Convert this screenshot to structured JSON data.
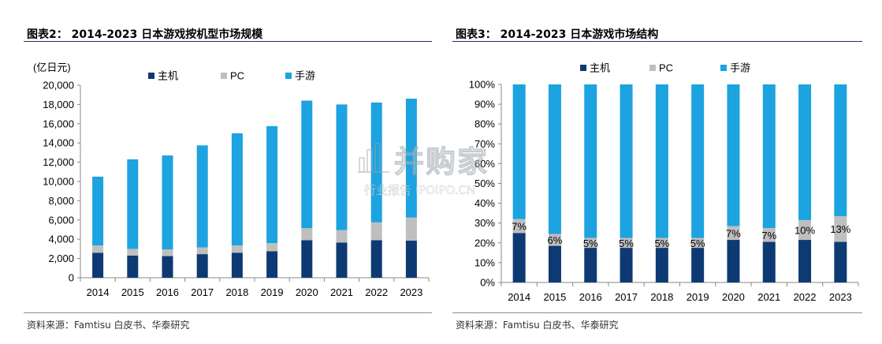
{
  "left_panel": {
    "title": "图表2： 2014-2023 日本游戏按机型市场规模",
    "source": "资料来源：Famtisu 白皮书、华泰研究"
  },
  "right_panel": {
    "title": "图表3： 2014-2023 日本游戏市场结构",
    "source": "资料来源：Famtisu 白皮书、华泰研究"
  },
  "watermark": {
    "main": "并购家",
    "sub": "行业报告 IPOIPO.CN"
  },
  "colors": {
    "console": "#0e3a73",
    "pc": "#bfbfbf",
    "mobile": "#1ca3e0",
    "rule": "#1f3864"
  },
  "chart_data": [
    {
      "type": "bar",
      "stacked": true,
      "unit_label": "(亿日元)",
      "categories": [
        "2014",
        "2015",
        "2016",
        "2017",
        "2018",
        "2019",
        "2020",
        "2021",
        "2022",
        "2023"
      ],
      "ylim": [
        0,
        20000
      ],
      "yticks": [
        0,
        2000,
        4000,
        6000,
        8000,
        10000,
        12000,
        14000,
        16000,
        18000,
        20000
      ],
      "ytick_labels": [
        "0",
        "2,000",
        "4,000",
        "6,000",
        "8,000",
        "10,000",
        "12,000",
        "14,000",
        "16,000",
        "18,000",
        "20,000"
      ],
      "legend_position": "top",
      "series": [
        {
          "name": "主机",
          "color": "#0e3a73",
          "values": [
            2600,
            2300,
            2250,
            2450,
            2600,
            2750,
            3900,
            3650,
            3900,
            3850
          ]
        },
        {
          "name": "PC",
          "color": "#bfbfbf",
          "values": [
            750,
            700,
            700,
            700,
            750,
            850,
            1250,
            1300,
            1850,
            2400
          ]
        },
        {
          "name": "手游",
          "color": "#1ca3e0",
          "values": [
            7150,
            9300,
            9750,
            10600,
            11650,
            12150,
            13250,
            13050,
            12450,
            12350
          ]
        }
      ]
    },
    {
      "type": "bar",
      "stacked": true,
      "percent": true,
      "categories": [
        "2014",
        "2015",
        "2016",
        "2017",
        "2018",
        "2019",
        "2020",
        "2021",
        "2022",
        "2023"
      ],
      "ylim": [
        0,
        100
      ],
      "yticks": [
        0,
        10,
        20,
        30,
        40,
        50,
        60,
        70,
        80,
        90,
        100
      ],
      "ytick_labels": [
        "0%",
        "10%",
        "20%",
        "30%",
        "40%",
        "50%",
        "60%",
        "70%",
        "80%",
        "90%",
        "100%"
      ],
      "legend_position": "top",
      "series": [
        {
          "name": "主机",
          "color": "#0e3a73",
          "values": [
            25,
            18.5,
            17.5,
            17.5,
            17.5,
            17.5,
            21.5,
            20.5,
            21.5,
            20.5
          ]
        },
        {
          "name": "PC",
          "color": "#bfbfbf",
          "values": [
            7,
            6,
            5,
            5,
            5,
            5,
            7,
            7,
            10,
            13
          ]
        },
        {
          "name": "手游",
          "color": "#1ca3e0",
          "values": [
            68,
            75.5,
            77.5,
            77.5,
            77.5,
            77.5,
            71.5,
            72.5,
            68.5,
            66.5
          ]
        }
      ],
      "pc_labels": [
        "7%",
        "6%",
        "5%",
        "5%",
        "5%",
        "5%",
        "7%",
        "7%",
        "10%",
        "13%"
      ]
    }
  ]
}
